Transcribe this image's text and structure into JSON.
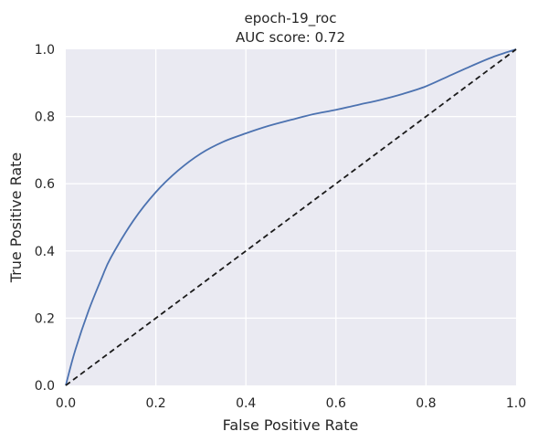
{
  "chart_data": {
    "type": "line",
    "title": "epoch-19_roc",
    "subtitle": "AUC score: 0.72",
    "xlabel": "False Positive Rate",
    "ylabel": "True Positive Rate",
    "xlim": [
      0.0,
      1.0
    ],
    "ylim": [
      0.0,
      1.0
    ],
    "xticks": [
      "0.0",
      "0.2",
      "0.4",
      "0.6",
      "0.8",
      "1.0"
    ],
    "yticks": [
      "0.0",
      "0.2",
      "0.4",
      "0.6",
      "0.8",
      "1.0"
    ],
    "grid": true,
    "series": [
      {
        "color": "#4c72b0",
        "style": "solid",
        "x": [
          0.0,
          0.02,
          0.05,
          0.08,
          0.1,
          0.15,
          0.2,
          0.25,
          0.3,
          0.35,
          0.4,
          0.45,
          0.5,
          0.55,
          0.6,
          0.65,
          0.7,
          0.75,
          0.8,
          0.85,
          0.9,
          0.95,
          1.0
        ],
        "y": [
          0.0,
          0.1,
          0.22,
          0.32,
          0.38,
          0.49,
          0.575,
          0.64,
          0.69,
          0.725,
          0.75,
          0.772,
          0.79,
          0.807,
          0.82,
          0.835,
          0.85,
          0.868,
          0.89,
          0.92,
          0.95,
          0.978,
          1.0
        ]
      },
      {
        "color": "#1a1a1a",
        "style": "dashed",
        "x": [
          0.0,
          1.0
        ],
        "y": [
          0.0,
          1.0
        ]
      }
    ]
  }
}
